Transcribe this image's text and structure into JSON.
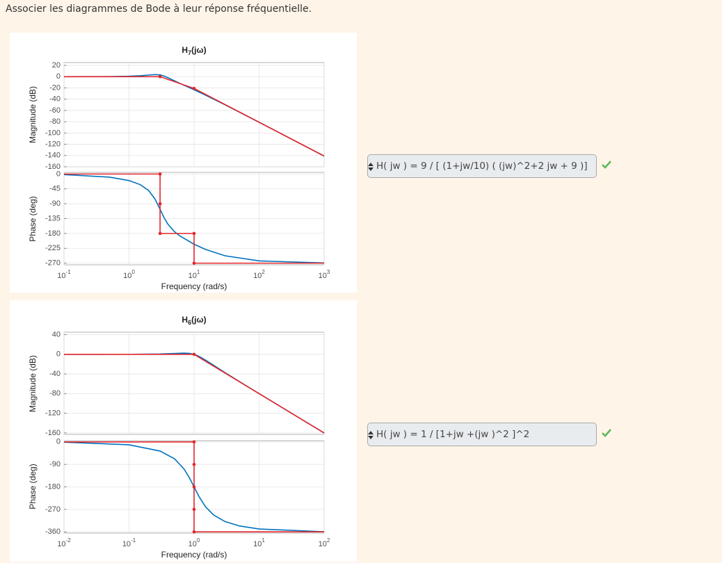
{
  "instruction": "Associer les diagrammes de Bode à leur réponse fréquentielle.",
  "questions": [
    {
      "answer": "H( jw ) = 9 / [ (1+jw/10) ( (jw)^2+2 jw + 9 )]",
      "plot": {
        "title": {
          "base": "H",
          "sub": "7",
          "arg": "(jω)"
        },
        "xlabel": "Frequency (rad/s)",
        "xscale": "log",
        "grid": true,
        "xlim": [
          0.1,
          1000
        ],
        "xticks": [
          {
            "value": 0.1,
            "label": "10",
            "exponent": "-1"
          },
          {
            "value": 1,
            "label": "10",
            "exponent": "0"
          },
          {
            "value": 10,
            "label": "10",
            "exponent": "1"
          },
          {
            "value": 100,
            "label": "10",
            "exponent": "2"
          },
          {
            "value": 1000,
            "label": "10",
            "exponent": "3"
          }
        ],
        "magnitude": {
          "ylabel": "Magnitude (dB)",
          "ylim": [
            -160,
            25
          ],
          "yticks": [
            -160,
            -140,
            -120,
            -100,
            -80,
            -60,
            -40,
            -20,
            0,
            20
          ],
          "response": {
            "color": "#0072bd",
            "x": [
              0.1,
              0.5,
              1,
              1.5,
              2,
              2.5,
              3,
              3.5,
              4,
              5,
              6,
              10,
              15,
              30,
              100,
              1000
            ],
            "y": [
              0,
              0.18,
              0.72,
              1.62,
              2.79,
              3.7,
              3.15,
              0.83,
              -2.08,
              -7.4,
              -11.67,
              -23.3,
              -32.8,
              -49.9,
              -80.9,
              -140.9
            ]
          },
          "asymptote": {
            "color": "#e3262b",
            "x": [
              0.1,
              3,
              10,
              1000
            ],
            "y": [
              0,
              0,
              -20.9,
              -140.9
            ]
          },
          "points": {
            "color": "#e3262b",
            "x": [
              3,
              10
            ],
            "y": [
              0,
              -20.9
            ]
          }
        },
        "phase": {
          "ylabel": "Phase (deg)",
          "ylim": [
            -275,
            5
          ],
          "yticks": [
            -270,
            -225,
            -180,
            -135,
            -90,
            -45,
            0
          ],
          "response": {
            "color": "#0072bd",
            "x": [
              0.1,
              0.5,
              1,
              1.5,
              2,
              2.5,
              3,
              3.5,
              4,
              5,
              6,
              10,
              15,
              30,
              100,
              1000
            ],
            "y": [
              -1.8,
              -9.4,
              -19.8,
              -32.5,
              -50,
              -75.2,
              -106.7,
              -134.2,
              -153,
              -174.6,
              -187,
              -212.6,
              -228.4,
              -247.7,
              -263.1,
              -269.3
            ]
          },
          "asymptote": {
            "color": "#e3262b",
            "x": [
              0.1,
              3,
              3,
              10,
              10,
              1000
            ],
            "y": [
              0,
              0,
              -180,
              -180,
              -270,
              -270
            ]
          },
          "points": {
            "color": "#e3262b",
            "x": [
              3,
              3,
              3,
              10,
              10
            ],
            "y": [
              0,
              -90,
              -180,
              -180,
              -270
            ]
          }
        }
      }
    },
    {
      "answer": "H( jw ) = 1 / [1+jw +(jw )^2 ]^2",
      "plot": {
        "title": {
          "base": "H",
          "sub": "6",
          "arg": "(jω)"
        },
        "xlabel": "Frequency (rad/s)",
        "xscale": "log",
        "grid": true,
        "xlim": [
          0.01,
          100
        ],
        "xticks": [
          {
            "value": 0.01,
            "label": "10",
            "exponent": "-2"
          },
          {
            "value": 0.1,
            "label": "10",
            "exponent": "-1"
          },
          {
            "value": 1,
            "label": "10",
            "exponent": "0"
          },
          {
            "value": 10,
            "label": "10",
            "exponent": "1"
          },
          {
            "value": 100,
            "label": "10",
            "exponent": "2"
          }
        ],
        "magnitude": {
          "ylabel": "Magnitude (dB)",
          "ylim": [
            -163,
            45
          ],
          "yticks": [
            -160,
            -120,
            -80,
            -40,
            0,
            40
          ],
          "response": {
            "color": "#0072bd",
            "x": [
              0.01,
              0.1,
              0.3,
              0.5,
              0.7,
              0.85,
              1,
              1.2,
              1.5,
              2,
              3,
              5,
              10,
              100
            ],
            "y": [
              0,
              0.09,
              0.75,
              1.81,
              2.5,
              1.94,
              0,
              -4.26,
              -11.6,
              -22.3,
              -37.3,
              -55.6,
              -79.9,
              -160
            ]
          },
          "asymptote": {
            "color": "#e3262b",
            "x": [
              0.01,
              1,
              100
            ],
            "y": [
              0,
              0,
              -160
            ]
          },
          "points": {
            "color": "#e3262b",
            "x": [
              1
            ],
            "y": [
              0
            ]
          }
        },
        "phase": {
          "ylabel": "Phase (deg)",
          "ylim": [
            -365,
            5
          ],
          "yticks": [
            -360,
            -270,
            -180,
            -90,
            0
          ],
          "response": {
            "color": "#0072bd",
            "x": [
              0.01,
              0.1,
              0.3,
              0.5,
              0.7,
              0.85,
              1,
              1.2,
              1.5,
              2,
              3,
              5,
              10,
              100
            ],
            "y": [
              -1.1,
              -11.5,
              -36.5,
              -67.4,
              -107.8,
              -143.8,
              -180,
              -220.2,
              -259.6,
              -292.6,
              -318.9,
              -336.4,
              -348.5,
              -359.4
            ]
          },
          "asymptote": {
            "color": "#e3262b",
            "x": [
              0.01,
              1,
              1,
              100
            ],
            "y": [
              0,
              0,
              -360,
              -360
            ]
          },
          "points": {
            "color": "#e3262b",
            "x": [
              1,
              1,
              1,
              1,
              1
            ],
            "y": [
              0,
              -90,
              -180,
              -270,
              -360
            ]
          }
        }
      }
    }
  ]
}
